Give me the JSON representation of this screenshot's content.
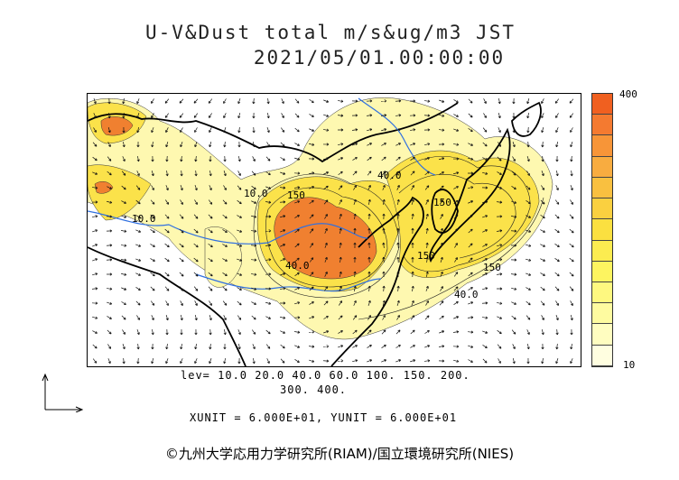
{
  "title": {
    "line1": "U-V&Dust total m/s&ug/m3 JST",
    "line2": "2021/05/01.00:00:00"
  },
  "colorbar": {
    "max_label": "400",
    "min_label": "10",
    "colors": [
      "#f06020",
      "#f47a30",
      "#f79538",
      "#f8ac40",
      "#f9c040",
      "#fad040",
      "#fbe040",
      "#fcec50",
      "#fdf460",
      "#fef880",
      "#fefba0",
      "#fffdc0",
      "#fffee0"
    ]
  },
  "legend": {
    "lev_line1": "lev= 10.0 20.0 40.0 60.0 100. 150. 200.",
    "lev_line2": "300. 400.",
    "unit_line": "XUNIT = 6.000E+01, YUNIT = 6.000E+01"
  },
  "contour_labels": [
    "150",
    "150",
    "40.0",
    "150",
    "150",
    "40.0",
    "40.0",
    "10.0",
    "10.0"
  ],
  "credit": "©九州大学応用力学研究所(RIAM)/国立環境研究所(NIES)",
  "colors": {
    "high": "#f06020",
    "mid": "#fad040",
    "low": "#fef8a0",
    "coast": "#000000",
    "river": "#3070e0"
  }
}
